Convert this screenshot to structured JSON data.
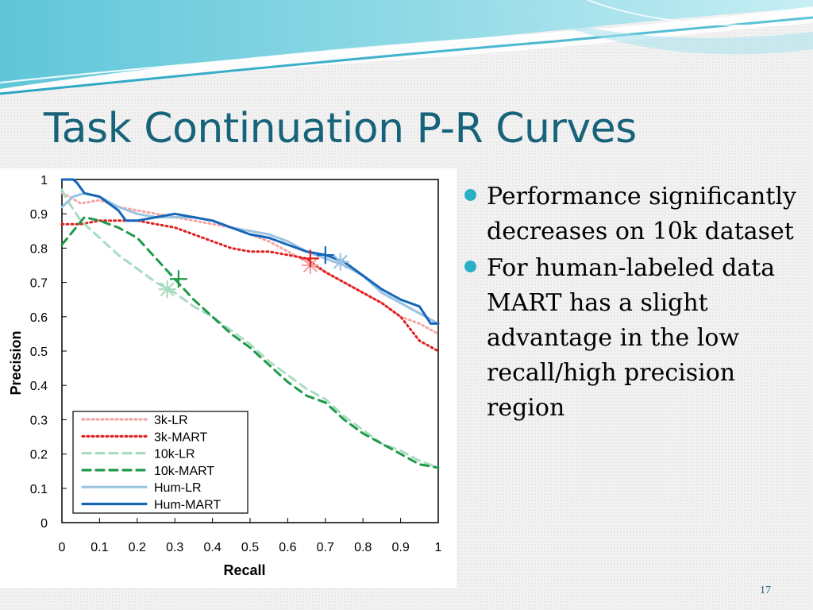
{
  "slide": {
    "title": "Task Continuation P-R Curves",
    "page_number": "17",
    "accent_color": "#2ab0c5",
    "title_color": "#17637a"
  },
  "bullets": [
    {
      "text": "Performance significantly decreases on 10k dataset"
    },
    {
      "text": "For human-labeled data MART has a slight advantage in the low recall/high precision region"
    }
  ],
  "chart_data": {
    "type": "line",
    "title": "",
    "xlabel": "Recall",
    "ylabel": "Precision",
    "xlim": [
      0,
      1
    ],
    "ylim": [
      0,
      1
    ],
    "xticks": [
      "0",
      "0.1",
      "0.2",
      "0.3",
      "0.4",
      "0.5",
      "0.6",
      "0.7",
      "0.8",
      "0.9",
      "1"
    ],
    "yticks": [
      "0",
      "0.1",
      "0.2",
      "0.3",
      "0.4",
      "0.5",
      "0.6",
      "0.7",
      "0.8",
      "0.9",
      "1"
    ],
    "grid": false,
    "legend_position": "bottom-left",
    "series": [
      {
        "name": "3k-LR",
        "color": "#f4a6a6",
        "style": "dotted",
        "x": [
          0,
          0.02,
          0.05,
          0.1,
          0.15,
          0.2,
          0.25,
          0.3,
          0.35,
          0.4,
          0.45,
          0.5,
          0.55,
          0.6,
          0.65,
          0.7,
          0.75,
          0.8,
          0.85,
          0.9,
          0.95,
          1.0
        ],
        "y": [
          0.96,
          0.95,
          0.93,
          0.94,
          0.92,
          0.91,
          0.9,
          0.89,
          0.88,
          0.87,
          0.86,
          0.84,
          0.82,
          0.79,
          0.76,
          0.73,
          0.7,
          0.67,
          0.64,
          0.6,
          0.58,
          0.55
        ],
        "marker": {
          "x": 0.66,
          "y": 0.75,
          "symbol": "asterisk"
        }
      },
      {
        "name": "3k-MART",
        "color": "#e02020",
        "style": "dotted",
        "x": [
          0,
          0.05,
          0.1,
          0.15,
          0.2,
          0.25,
          0.3,
          0.35,
          0.4,
          0.45,
          0.5,
          0.55,
          0.6,
          0.65,
          0.7,
          0.75,
          0.8,
          0.85,
          0.9,
          0.95,
          1.0
        ],
        "y": [
          0.87,
          0.87,
          0.88,
          0.88,
          0.88,
          0.87,
          0.86,
          0.84,
          0.82,
          0.8,
          0.79,
          0.79,
          0.78,
          0.77,
          0.73,
          0.7,
          0.67,
          0.64,
          0.6,
          0.53,
          0.5
        ],
        "marker": {
          "x": 0.66,
          "y": 0.77,
          "symbol": "plus"
        }
      },
      {
        "name": "10k-LR",
        "color": "#a8dcc0",
        "style": "dashed",
        "x": [
          0,
          0.02,
          0.05,
          0.1,
          0.15,
          0.2,
          0.25,
          0.3,
          0.35,
          0.4,
          0.45,
          0.5,
          0.55,
          0.6,
          0.65,
          0.7,
          0.75,
          0.8,
          0.85,
          0.9,
          0.95,
          1.0
        ],
        "y": [
          0.97,
          0.93,
          0.88,
          0.83,
          0.78,
          0.74,
          0.7,
          0.67,
          0.63,
          0.6,
          0.56,
          0.52,
          0.47,
          0.43,
          0.39,
          0.36,
          0.31,
          0.27,
          0.23,
          0.21,
          0.18,
          0.16
        ],
        "marker": {
          "x": 0.28,
          "y": 0.68,
          "symbol": "asterisk"
        }
      },
      {
        "name": "10k-MART",
        "color": "#1f9a48",
        "style": "dashed",
        "x": [
          0,
          0.03,
          0.06,
          0.1,
          0.15,
          0.2,
          0.25,
          0.3,
          0.35,
          0.4,
          0.45,
          0.5,
          0.55,
          0.6,
          0.65,
          0.7,
          0.75,
          0.8,
          0.85,
          0.9,
          0.95,
          1.0
        ],
        "y": [
          0.81,
          0.85,
          0.89,
          0.88,
          0.86,
          0.83,
          0.77,
          0.71,
          0.65,
          0.6,
          0.55,
          0.51,
          0.46,
          0.41,
          0.37,
          0.35,
          0.3,
          0.26,
          0.23,
          0.2,
          0.17,
          0.16
        ],
        "marker": {
          "x": 0.31,
          "y": 0.71,
          "symbol": "plus"
        }
      },
      {
        "name": "Hum-LR",
        "color": "#9cc3e0",
        "style": "solid",
        "x": [
          0,
          0.03,
          0.06,
          0.1,
          0.15,
          0.2,
          0.25,
          0.3,
          0.35,
          0.4,
          0.45,
          0.5,
          0.55,
          0.6,
          0.65,
          0.7,
          0.75,
          0.8,
          0.85,
          0.9,
          0.95,
          1.0
        ],
        "y": [
          0.92,
          0.95,
          0.96,
          0.95,
          0.92,
          0.9,
          0.89,
          0.89,
          0.89,
          0.88,
          0.86,
          0.85,
          0.84,
          0.82,
          0.79,
          0.77,
          0.75,
          0.72,
          0.67,
          0.64,
          0.61,
          0.58
        ],
        "marker": {
          "x": 0.74,
          "y": 0.76,
          "symbol": "asterisk"
        }
      },
      {
        "name": "Hum-MART",
        "color": "#1566b8",
        "style": "solid",
        "x": [
          0,
          0.03,
          0.04,
          0.06,
          0.1,
          0.15,
          0.17,
          0.2,
          0.25,
          0.3,
          0.35,
          0.4,
          0.45,
          0.5,
          0.55,
          0.6,
          0.65,
          0.7,
          0.75,
          0.8,
          0.85,
          0.9,
          0.95,
          0.98,
          1.0
        ],
        "y": [
          1.0,
          1.0,
          0.99,
          0.96,
          0.95,
          0.91,
          0.88,
          0.88,
          0.89,
          0.9,
          0.89,
          0.88,
          0.86,
          0.84,
          0.83,
          0.81,
          0.79,
          0.78,
          0.76,
          0.72,
          0.68,
          0.65,
          0.63,
          0.58,
          0.58
        ],
        "marker": {
          "x": 0.7,
          "y": 0.78,
          "symbol": "plus"
        }
      }
    ]
  }
}
